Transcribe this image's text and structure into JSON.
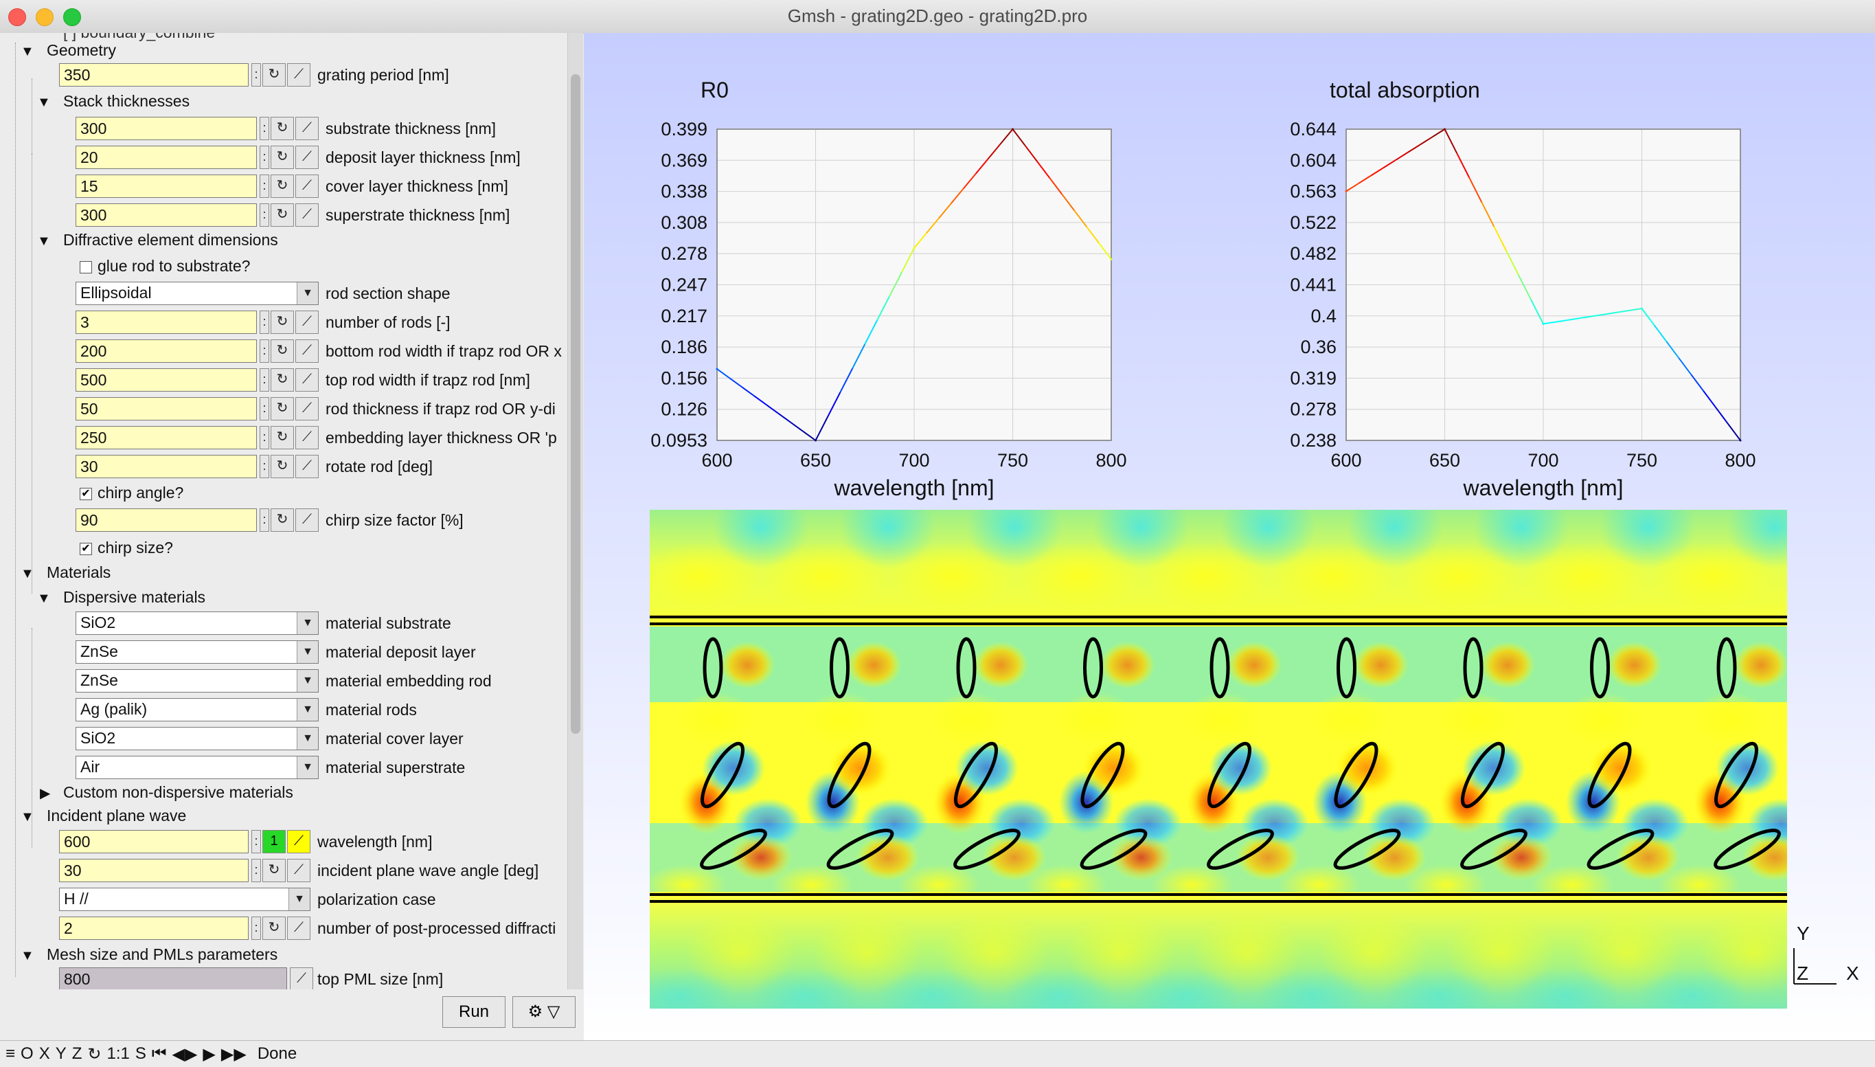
{
  "window": {
    "title": "Gmsh - grating2D.geo - grating2D.pro"
  },
  "tree": {
    "partial_top": "[ ] boundary_combine",
    "geometry": {
      "label": "Geometry",
      "grating_period": {
        "value": "350",
        "label": "grating period [nm]"
      },
      "stack": {
        "label": "Stack thicknesses",
        "items": [
          {
            "value": "300",
            "label": "substrate thickness [nm]"
          },
          {
            "value": "20",
            "label": "deposit layer thickness [nm]"
          },
          {
            "value": "15",
            "label": "cover layer thickness [nm]"
          },
          {
            "value": "300",
            "label": "superstrate thickness [nm]"
          }
        ]
      },
      "diffractive": {
        "label": "Diffractive element dimensions",
        "glue_label": "glue rod to substrate?",
        "shape": {
          "value": "Ellipsoidal",
          "label": "rod section shape"
        },
        "items": [
          {
            "value": "3",
            "label": "number of rods [-]"
          },
          {
            "value": "200",
            "label": "bottom rod width if trapz rod OR x"
          },
          {
            "value": "500",
            "label": "top rod width if trapz rod [nm]"
          },
          {
            "value": "50",
            "label": "rod thickness if trapz rod OR y-di"
          },
          {
            "value": "250",
            "label": "embedding layer thickness OR 'p"
          },
          {
            "value": "30",
            "label": "rotate rod [deg]"
          }
        ],
        "chirp_angle_label": "chirp angle?",
        "chirp_size_factor": {
          "value": "90",
          "label": "chirp size factor [%]"
        },
        "chirp_size_label": "chirp size?"
      }
    },
    "materials": {
      "label": "Materials",
      "dispersive": {
        "label": "Dispersive materials",
        "items": [
          {
            "value": "SiO2",
            "label": "material substrate"
          },
          {
            "value": "ZnSe",
            "label": "material deposit layer"
          },
          {
            "value": "ZnSe",
            "label": "material embedding rod"
          },
          {
            "value": "Ag (palik)",
            "label": "material rods"
          },
          {
            "value": "SiO2",
            "label": "material cover layer"
          },
          {
            "value": "Air",
            "label": "material superstrate"
          }
        ]
      },
      "custom_label": "Custom non-dispersive materials"
    },
    "incident": {
      "label": "Incident plane wave",
      "wavelength": {
        "value": "600",
        "label": "wavelength [nm]",
        "badge": "1"
      },
      "angle": {
        "value": "30",
        "label": "incident plane wave angle [deg]"
      },
      "polarization": {
        "value": "H //",
        "label": "polarization case"
      },
      "post": {
        "value": "2",
        "label": "number of post-processed diffracti"
      }
    },
    "mesh": {
      "label": "Mesh size and PMLs parameters",
      "top_pml": {
        "value": "800",
        "label": "top PML size [nm]"
      }
    },
    "run_label": "Run",
    "gear_icon": "gear-icon"
  },
  "status": {
    "toolbar": [
      "≡",
      "O",
      "X",
      "Y",
      "Z",
      "↻",
      "1:1",
      "S",
      "⏮",
      "◀▶",
      "▶",
      "▶▶"
    ],
    "message": "Done"
  },
  "axes_triad": {
    "y": "Y",
    "z": "Z",
    "x": "X"
  },
  "chart_data": [
    {
      "type": "line",
      "title": "R0",
      "xlabel": "wavelength [nm]",
      "ylabel": "",
      "x": [
        600,
        650,
        700,
        750,
        800
      ],
      "values": [
        0.165,
        0.0953,
        0.283,
        0.399,
        0.272
      ],
      "xlim": [
        600,
        800
      ],
      "ylim": [
        0.0953,
        0.399
      ],
      "xticks": [
        "600",
        "650",
        "700",
        "750",
        "800"
      ],
      "yticks": [
        "0.399",
        "0.369",
        "0.338",
        "0.308",
        "0.278",
        "0.247",
        "0.217",
        "0.186",
        "0.156",
        "0.126",
        "0.0953"
      ],
      "grid": true,
      "colormap": "jet"
    },
    {
      "type": "line",
      "title": "total absorption",
      "xlabel": "wavelength [nm]",
      "ylabel": "",
      "x": [
        600,
        650,
        700,
        750,
        800
      ],
      "values": [
        0.563,
        0.644,
        0.39,
        0.41,
        0.238
      ],
      "xlim": [
        600,
        800
      ],
      "ylim": [
        0.238,
        0.644
      ],
      "xticks": [
        "600",
        "650",
        "700",
        "750",
        "800"
      ],
      "yticks": [
        "0.644",
        "0.604",
        "0.563",
        "0.522",
        "0.482",
        "0.441",
        "0.4",
        "0.36",
        "0.319",
        "0.278",
        "0.238"
      ],
      "grid": true,
      "colormap": "jet"
    }
  ]
}
